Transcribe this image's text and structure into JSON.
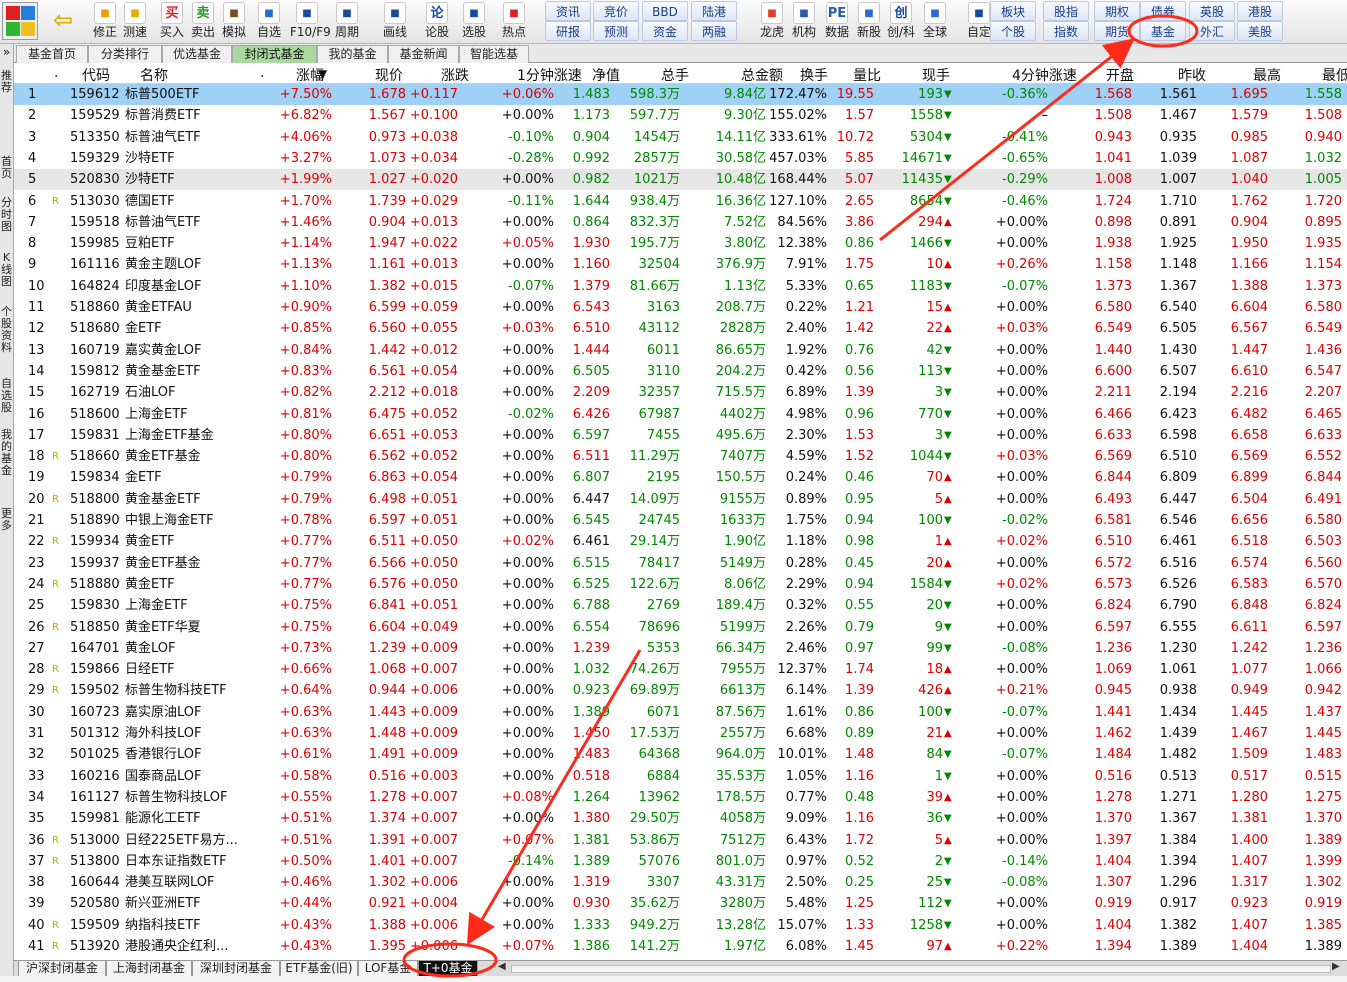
{
  "toolbar": {
    "buttons": [
      {
        "label": "修正",
        "icon": "arrow-up-down-icon"
      },
      {
        "label": "测速",
        "icon": "lightning-icon"
      },
      {
        "label": "买入",
        "icon": "buy-icon",
        "glyph": "买"
      },
      {
        "label": "卖出",
        "icon": "sell-icon",
        "glyph": "卖"
      },
      {
        "label": "模拟",
        "icon": "hammer-icon"
      },
      {
        "label": "自选",
        "icon": "watchlist-icon"
      },
      {
        "label": "F10/F9",
        "icon": "f10-icon"
      },
      {
        "label": "周期",
        "icon": "period-icon"
      },
      {
        "label": "画线",
        "icon": "pencil-icon"
      },
      {
        "label": "论股",
        "icon": "chat-icon",
        "glyph": "论"
      },
      {
        "label": "选股",
        "icon": "select-stock-icon"
      },
      {
        "label": "热点",
        "icon": "hot-icon"
      },
      {
        "label": "龙虎",
        "icon": "dragon-icon"
      },
      {
        "label": "机构",
        "icon": "institution-icon"
      },
      {
        "label": "数据",
        "icon": "pe-icon",
        "glyph": "PE"
      },
      {
        "label": "新股",
        "icon": "new-stock-icon"
      },
      {
        "label": "创/科",
        "icon": "chuang-icon",
        "glyph": "创"
      },
      {
        "label": "全球",
        "icon": "globe-icon"
      },
      {
        "label": "自定",
        "icon": "custom-icon"
      }
    ],
    "quick": [
      {
        "top": "资讯",
        "bottom": "研报"
      },
      {
        "top": "竞价",
        "bottom": "预测"
      },
      {
        "top": "BBD",
        "bottom": "资金"
      },
      {
        "top": "陆港",
        "bottom": "两融"
      },
      {
        "top": "板块",
        "bottom": "个股"
      },
      {
        "top": "股指",
        "bottom": "指数"
      },
      {
        "top": "期权",
        "bottom": "期货"
      },
      {
        "top": "债券",
        "bottom": "基金"
      },
      {
        "top": "英股",
        "bottom": "外汇"
      },
      {
        "top": "港股",
        "bottom": "美股"
      }
    ]
  },
  "leftbar": [
    "推荐",
    "首页",
    "分时图",
    "K线图",
    "个股资料",
    "自选股",
    "我的基金",
    "更多"
  ],
  "tabs": [
    "基金首页",
    "分类排行",
    "优选基金",
    "封闭式基金",
    "我的基金",
    "基金新闻",
    "智能选基"
  ],
  "active_tab": 3,
  "columns": [
    "代码",
    "名称",
    "涨幅",
    "现价",
    "涨跌",
    "1分钟涨速",
    "净值",
    "总手",
    "总金额",
    "换手",
    "量比",
    "现手",
    "4分钟涨速",
    "开盘",
    "昨收",
    "最高",
    "最低"
  ],
  "sort_arrow": "▼",
  "rows": [
    [
      "1",
      "",
      "159612",
      "标普500ETF",
      "+7.50%",
      "1.678",
      "+0.117",
      "+0.06%",
      "1.483",
      "598.3万",
      "9.84亿",
      "172.47%",
      "19.55",
      "193",
      "-0.36%",
      "1.568",
      "1.561",
      "1.695",
      "1.558"
    ],
    [
      "2",
      "",
      "159529",
      "标普消费ETF",
      "+6.82%",
      "1.567",
      "+0.100",
      "+0.00%",
      "1.173",
      "597.7万",
      "9.30亿",
      "155.02%",
      "1.57",
      "1558",
      "–",
      "1.508",
      "1.467",
      "1.579",
      "1.508"
    ],
    [
      "3",
      "",
      "513350",
      "标普油气ETF",
      "+4.06%",
      "0.973",
      "+0.038",
      "-0.10%",
      "0.904",
      "1454万",
      "14.11亿",
      "333.61%",
      "10.72",
      "5304",
      "-0.41%",
      "0.943",
      "0.935",
      "0.985",
      "0.940"
    ],
    [
      "4",
      "",
      "159329",
      "沙特ETF",
      "+3.27%",
      "1.073",
      "+0.034",
      "-0.28%",
      "0.992",
      "2857万",
      "30.58亿",
      "457.03%",
      "5.85",
      "14671",
      "-0.65%",
      "1.041",
      "1.039",
      "1.087",
      "1.032"
    ],
    [
      "5",
      "",
      "520830",
      "沙特ETF",
      "+1.99%",
      "1.027",
      "+0.020",
      "+0.00%",
      "0.982",
      "1021万",
      "10.48亿",
      "168.44%",
      "5.07",
      "11435",
      "-0.29%",
      "1.008",
      "1.007",
      "1.040",
      "1.005"
    ],
    [
      "6",
      "R",
      "513030",
      "德国ETF",
      "+1.70%",
      "1.739",
      "+0.029",
      "-0.11%",
      "1.644",
      "938.4万",
      "16.36亿",
      "127.10%",
      "2.65",
      "8654",
      "-0.46%",
      "1.724",
      "1.710",
      "1.762",
      "1.720"
    ],
    [
      "7",
      "",
      "159518",
      "标普油气ETF",
      "+1.46%",
      "0.904",
      "+0.013",
      "+0.00%",
      "0.864",
      "832.3万",
      "7.52亿",
      "84.56%",
      "3.86",
      "294",
      "+0.00%",
      "0.898",
      "0.891",
      "0.904",
      "0.895"
    ],
    [
      "8",
      "",
      "159985",
      "豆粕ETF",
      "+1.14%",
      "1.947",
      "+0.022",
      "+0.05%",
      "1.930",
      "195.7万",
      "3.80亿",
      "12.38%",
      "0.86",
      "1466",
      "+0.00%",
      "1.938",
      "1.925",
      "1.950",
      "1.935"
    ],
    [
      "9",
      "",
      "161116",
      "黄金主题LOF",
      "+1.13%",
      "1.161",
      "+0.013",
      "+0.00%",
      "1.160",
      "32504",
      "376.9万",
      "7.91%",
      "1.75",
      "10",
      "+0.26%",
      "1.158",
      "1.148",
      "1.166",
      "1.154"
    ],
    [
      "10",
      "",
      "164824",
      "印度基金LOF",
      "+1.10%",
      "1.382",
      "+0.015",
      "-0.07%",
      "1.379",
      "81.66万",
      "1.13亿",
      "5.33%",
      "0.65",
      "1183",
      "-0.07%",
      "1.373",
      "1.367",
      "1.388",
      "1.373"
    ],
    [
      "11",
      "",
      "518860",
      "黄金ETFAU",
      "+0.90%",
      "6.599",
      "+0.059",
      "+0.00%",
      "6.543",
      "3163",
      "208.7万",
      "0.22%",
      "1.21",
      "15",
      "+0.00%",
      "6.580",
      "6.540",
      "6.604",
      "6.580"
    ],
    [
      "12",
      "",
      "518680",
      "金ETF",
      "+0.85%",
      "6.560",
      "+0.055",
      "+0.03%",
      "6.510",
      "43112",
      "2828万",
      "2.40%",
      "1.42",
      "22",
      "+0.03%",
      "6.549",
      "6.505",
      "6.567",
      "6.549"
    ],
    [
      "13",
      "",
      "160719",
      "嘉实黄金LOF",
      "+0.84%",
      "1.442",
      "+0.012",
      "+0.00%",
      "1.444",
      "6011",
      "86.65万",
      "1.92%",
      "0.76",
      "42",
      "+0.00%",
      "1.440",
      "1.430",
      "1.447",
      "1.436"
    ],
    [
      "14",
      "",
      "159812",
      "黄金基金ETF",
      "+0.83%",
      "6.561",
      "+0.054",
      "+0.00%",
      "6.505",
      "3110",
      "204.2万",
      "0.42%",
      "0.56",
      "113",
      "+0.00%",
      "6.600",
      "6.507",
      "6.610",
      "6.547"
    ],
    [
      "15",
      "",
      "162719",
      "石油LOF",
      "+0.82%",
      "2.212",
      "+0.018",
      "+0.00%",
      "2.209",
      "32357",
      "715.5万",
      "6.89%",
      "1.39",
      "3",
      "+0.00%",
      "2.211",
      "2.194",
      "2.216",
      "2.207"
    ],
    [
      "16",
      "",
      "518600",
      "上海金ETF",
      "+0.81%",
      "6.475",
      "+0.052",
      "-0.02%",
      "6.426",
      "67987",
      "4402万",
      "4.98%",
      "0.96",
      "770",
      "+0.00%",
      "6.466",
      "6.423",
      "6.482",
      "6.465"
    ],
    [
      "17",
      "",
      "159831",
      "上海金ETF基金",
      "+0.80%",
      "6.651",
      "+0.053",
      "+0.00%",
      "6.597",
      "7455",
      "495.6万",
      "2.30%",
      "1.53",
      "3",
      "+0.00%",
      "6.633",
      "6.598",
      "6.658",
      "6.633"
    ],
    [
      "18",
      "R",
      "518660",
      "黄金ETF基金",
      "+0.80%",
      "6.562",
      "+0.052",
      "+0.00%",
      "6.511",
      "11.29万",
      "7407万",
      "4.59%",
      "1.52",
      "1044",
      "+0.03%",
      "6.569",
      "6.510",
      "6.569",
      "6.552"
    ],
    [
      "19",
      "",
      "159834",
      "金ETF",
      "+0.79%",
      "6.863",
      "+0.054",
      "+0.00%",
      "6.807",
      "2195",
      "150.5万",
      "0.24%",
      "0.46",
      "70",
      "+0.00%",
      "6.844",
      "6.809",
      "6.899",
      "6.844"
    ],
    [
      "20",
      "R",
      "518800",
      "黄金基金ETF",
      "+0.79%",
      "6.498",
      "+0.051",
      "+0.00%",
      "6.447",
      "14.09万",
      "9155万",
      "0.89%",
      "0.95",
      "5",
      "+0.00%",
      "6.493",
      "6.447",
      "6.504",
      "6.491"
    ],
    [
      "21",
      "",
      "518890",
      "中银上海金ETF",
      "+0.78%",
      "6.597",
      "+0.051",
      "+0.00%",
      "6.545",
      "24745",
      "1633万",
      "1.75%",
      "0.94",
      "100",
      "-0.02%",
      "6.581",
      "6.546",
      "6.656",
      "6.580"
    ],
    [
      "22",
      "R",
      "159934",
      "黄金ETF",
      "+0.77%",
      "6.511",
      "+0.050",
      "+0.02%",
      "6.461",
      "29.14万",
      "1.90亿",
      "1.18%",
      "0.98",
      "1",
      "+0.02%",
      "6.510",
      "6.461",
      "6.518",
      "6.503"
    ],
    [
      "23",
      "",
      "159937",
      "黄金ETF基金",
      "+0.77%",
      "6.566",
      "+0.050",
      "+0.00%",
      "6.515",
      "78417",
      "5149万",
      "0.28%",
      "0.45",
      "20",
      "+0.00%",
      "6.572",
      "6.516",
      "6.574",
      "6.560"
    ],
    [
      "24",
      "R",
      "518880",
      "黄金ETF",
      "+0.77%",
      "6.576",
      "+0.050",
      "+0.00%",
      "6.525",
      "122.6万",
      "8.06亿",
      "2.29%",
      "0.94",
      "1584",
      "+0.02%",
      "6.573",
      "6.526",
      "6.583",
      "6.570"
    ],
    [
      "25",
      "",
      "159830",
      "上海金ETF",
      "+0.75%",
      "6.841",
      "+0.051",
      "+0.00%",
      "6.788",
      "2769",
      "189.4万",
      "0.32%",
      "0.55",
      "20",
      "+0.00%",
      "6.824",
      "6.790",
      "6.848",
      "6.824"
    ],
    [
      "26",
      "R",
      "518850",
      "黄金ETF华夏",
      "+0.75%",
      "6.604",
      "+0.049",
      "+0.00%",
      "6.554",
      "78696",
      "5199万",
      "2.26%",
      "0.79",
      "9",
      "+0.00%",
      "6.597",
      "6.555",
      "6.611",
      "6.597"
    ],
    [
      "27",
      "",
      "164701",
      "黄金LOF",
      "+0.73%",
      "1.239",
      "+0.009",
      "+0.00%",
      "1.239",
      "5353",
      "66.34万",
      "2.46%",
      "0.97",
      "99",
      "-0.08%",
      "1.236",
      "1.230",
      "1.242",
      "1.236"
    ],
    [
      "28",
      "R",
      "159866",
      "日经ETF",
      "+0.66%",
      "1.068",
      "+0.007",
      "+0.00%",
      "1.032",
      "74.26万",
      "7955万",
      "12.37%",
      "1.74",
      "18",
      "+0.00%",
      "1.069",
      "1.061",
      "1.077",
      "1.066"
    ],
    [
      "29",
      "R",
      "159502",
      "标普生物科技ETF",
      "+0.64%",
      "0.944",
      "+0.006",
      "+0.00%",
      "0.923",
      "69.89万",
      "6613万",
      "6.14%",
      "1.39",
      "426",
      "+0.21%",
      "0.945",
      "0.938",
      "0.949",
      "0.942"
    ],
    [
      "30",
      "",
      "160723",
      "嘉实原油LOF",
      "+0.63%",
      "1.443",
      "+0.009",
      "+0.00%",
      "1.389",
      "6071",
      "87.56万",
      "1.61%",
      "0.86",
      "100",
      "-0.07%",
      "1.441",
      "1.434",
      "1.445",
      "1.437"
    ],
    [
      "31",
      "",
      "501312",
      "海外科技LOF",
      "+0.63%",
      "1.448",
      "+0.009",
      "+0.00%",
      "1.450",
      "17.53万",
      "2557万",
      "6.68%",
      "0.89",
      "21",
      "+0.00%",
      "1.462",
      "1.439",
      "1.467",
      "1.445"
    ],
    [
      "32",
      "",
      "501025",
      "香港银行LOF",
      "+0.61%",
      "1.491",
      "+0.009",
      "+0.00%",
      "1.483",
      "64368",
      "964.0万",
      "10.01%",
      "1.48",
      "84",
      "-0.07%",
      "1.484",
      "1.482",
      "1.509",
      "1.483"
    ],
    [
      "33",
      "",
      "160216",
      "国泰商品LOF",
      "+0.58%",
      "0.516",
      "+0.003",
      "+0.00%",
      "0.518",
      "6884",
      "35.53万",
      "1.05%",
      "1.16",
      "1",
      "+0.00%",
      "0.516",
      "0.513",
      "0.517",
      "0.515"
    ],
    [
      "34",
      "",
      "161127",
      "标普生物科技LOF",
      "+0.55%",
      "1.278",
      "+0.007",
      "+0.08%",
      "1.264",
      "13962",
      "178.5万",
      "0.77%",
      "0.48",
      "39",
      "+0.00%",
      "1.278",
      "1.271",
      "1.280",
      "1.275"
    ],
    [
      "35",
      "",
      "159981",
      "能源化工ETF",
      "+0.51%",
      "1.374",
      "+0.007",
      "+0.00%",
      "1.380",
      "29.50万",
      "4058万",
      "9.09%",
      "1.16",
      "36",
      "+0.00%",
      "1.370",
      "1.367",
      "1.381",
      "1.370"
    ],
    [
      "36",
      "R",
      "513000",
      "日经225ETF易方...",
      "+0.51%",
      "1.391",
      "+0.007",
      "+0.07%",
      "1.381",
      "53.86万",
      "7512万",
      "6.43%",
      "1.72",
      "5",
      "+0.00%",
      "1.397",
      "1.384",
      "1.400",
      "1.389"
    ],
    [
      "37",
      "R",
      "513800",
      "日本东证指数ETF",
      "+0.50%",
      "1.401",
      "+0.007",
      "-0.14%",
      "1.389",
      "57076",
      "801.0万",
      "0.97%",
      "0.52",
      "2",
      "-0.14%",
      "1.404",
      "1.394",
      "1.407",
      "1.399"
    ],
    [
      "38",
      "",
      "160644",
      "港美互联网LOF",
      "+0.46%",
      "1.302",
      "+0.006",
      "+0.00%",
      "1.319",
      "3307",
      "43.31万",
      "2.50%",
      "0.25",
      "25",
      "-0.08%",
      "1.307",
      "1.296",
      "1.317",
      "1.302"
    ],
    [
      "39",
      "",
      "520580",
      "新兴亚洲ETF",
      "+0.44%",
      "0.921",
      "+0.004",
      "+0.00%",
      "0.930",
      "35.62万",
      "3280万",
      "5.48%",
      "1.25",
      "112",
      "+0.00%",
      "0.919",
      "0.917",
      "0.923",
      "0.919"
    ],
    [
      "40",
      "R",
      "159509",
      "纳指科技ETF",
      "+0.43%",
      "1.388",
      "+0.006",
      "+0.00%",
      "1.333",
      "949.2万",
      "13.28亿",
      "15.07%",
      "1.33",
      "1258",
      "+0.00%",
      "1.404",
      "1.382",
      "1.407",
      "1.385"
    ],
    [
      "41",
      "R",
      "513920",
      "港股通央企红利...",
      "+0.43%",
      "1.395",
      "+0.006",
      "+0.07%",
      "1.386",
      "141.2万",
      "1.97亿",
      "6.08%",
      "1.45",
      "97",
      "+0.22%",
      "1.394",
      "1.389",
      "1.404",
      "1.389"
    ]
  ],
  "hand_dir": [
    "dn",
    "dn",
    "dn",
    "dn",
    "dn",
    "dn",
    "up",
    "dn",
    "up",
    "dn",
    "up",
    "up",
    "dn",
    "dn",
    "dn",
    "dn",
    "dn",
    "dn",
    "up",
    "up",
    "dn",
    "up",
    "up",
    "dn",
    "dn",
    "dn",
    "dn",
    "up",
    "up",
    "dn",
    "up",
    "dn",
    "dn",
    "up",
    "dn",
    "up",
    "dn",
    "dn",
    "dn",
    "dn",
    "up"
  ],
  "bottom_tabs": [
    "沪深封闭基金",
    "上海封闭基金",
    "深圳封闭基金",
    "ETF基金(旧)",
    "LOF基金",
    "T+0基金"
  ],
  "active_bottom_tab": 5,
  "colors": {
    "up": "#e00000",
    "down": "#008a00",
    "flat": "#111111",
    "annotation": "#ff2a1a",
    "selected_row": "#9fd0f5"
  }
}
